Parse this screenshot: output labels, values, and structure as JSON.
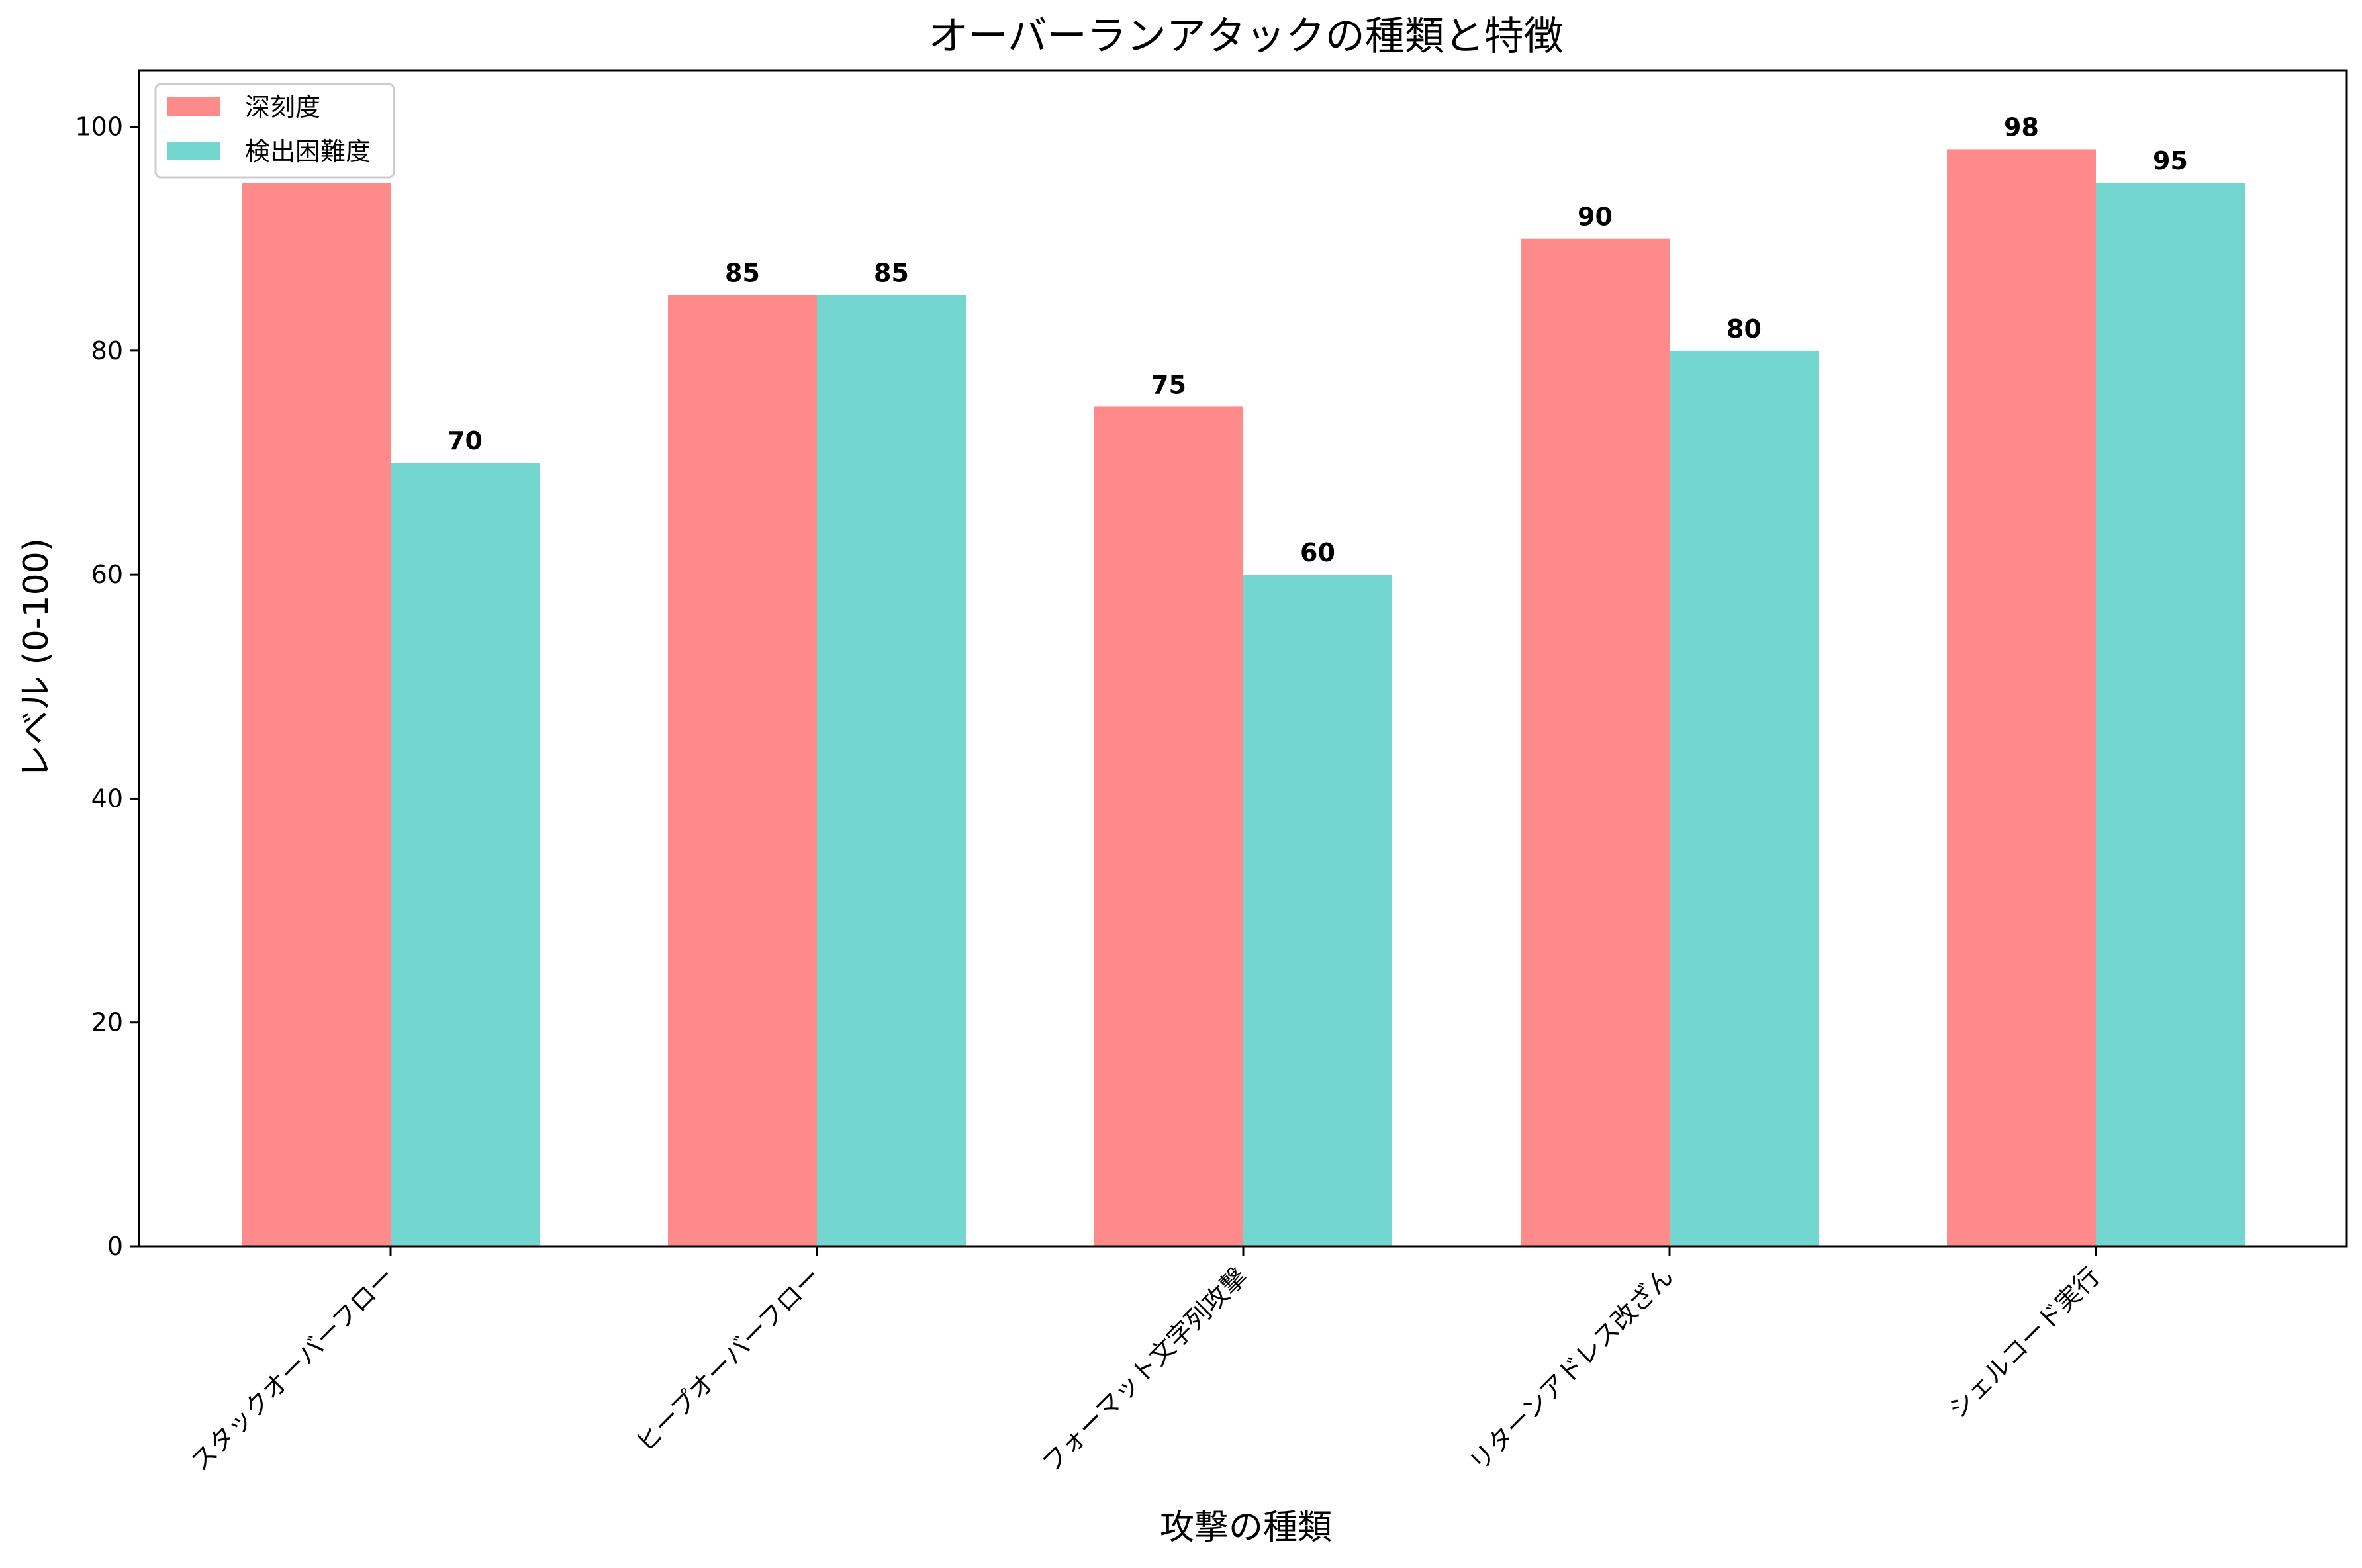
{
  "chart_data": {
    "type": "bar",
    "title": "オーバーランアタックの種類と特徴",
    "xlabel": "攻撃の種類",
    "ylabel": "レベル (0-100)",
    "ylim": [
      0,
      105
    ],
    "yticks": [
      0,
      20,
      40,
      60,
      80,
      100
    ],
    "categories": [
      "スタックオーバーフロー",
      "ヒープオーバーフロー",
      "フォーマット文字列攻撃",
      "リターンアドレス改ざん",
      "シェルコード実行"
    ],
    "series": [
      {
        "name": "深刻度",
        "color": "#ff8a8a",
        "values": [
          95,
          85,
          75,
          90,
          98
        ],
        "labels_shown": [
          false,
          true,
          true,
          true,
          true
        ]
      },
      {
        "name": "検出困難度",
        "color": "#74d7cf",
        "values": [
          70,
          85,
          60,
          80,
          95
        ],
        "labels_shown": [
          true,
          true,
          true,
          true,
          true
        ]
      }
    ],
    "legend_position": "upper-left",
    "grid": false
  }
}
